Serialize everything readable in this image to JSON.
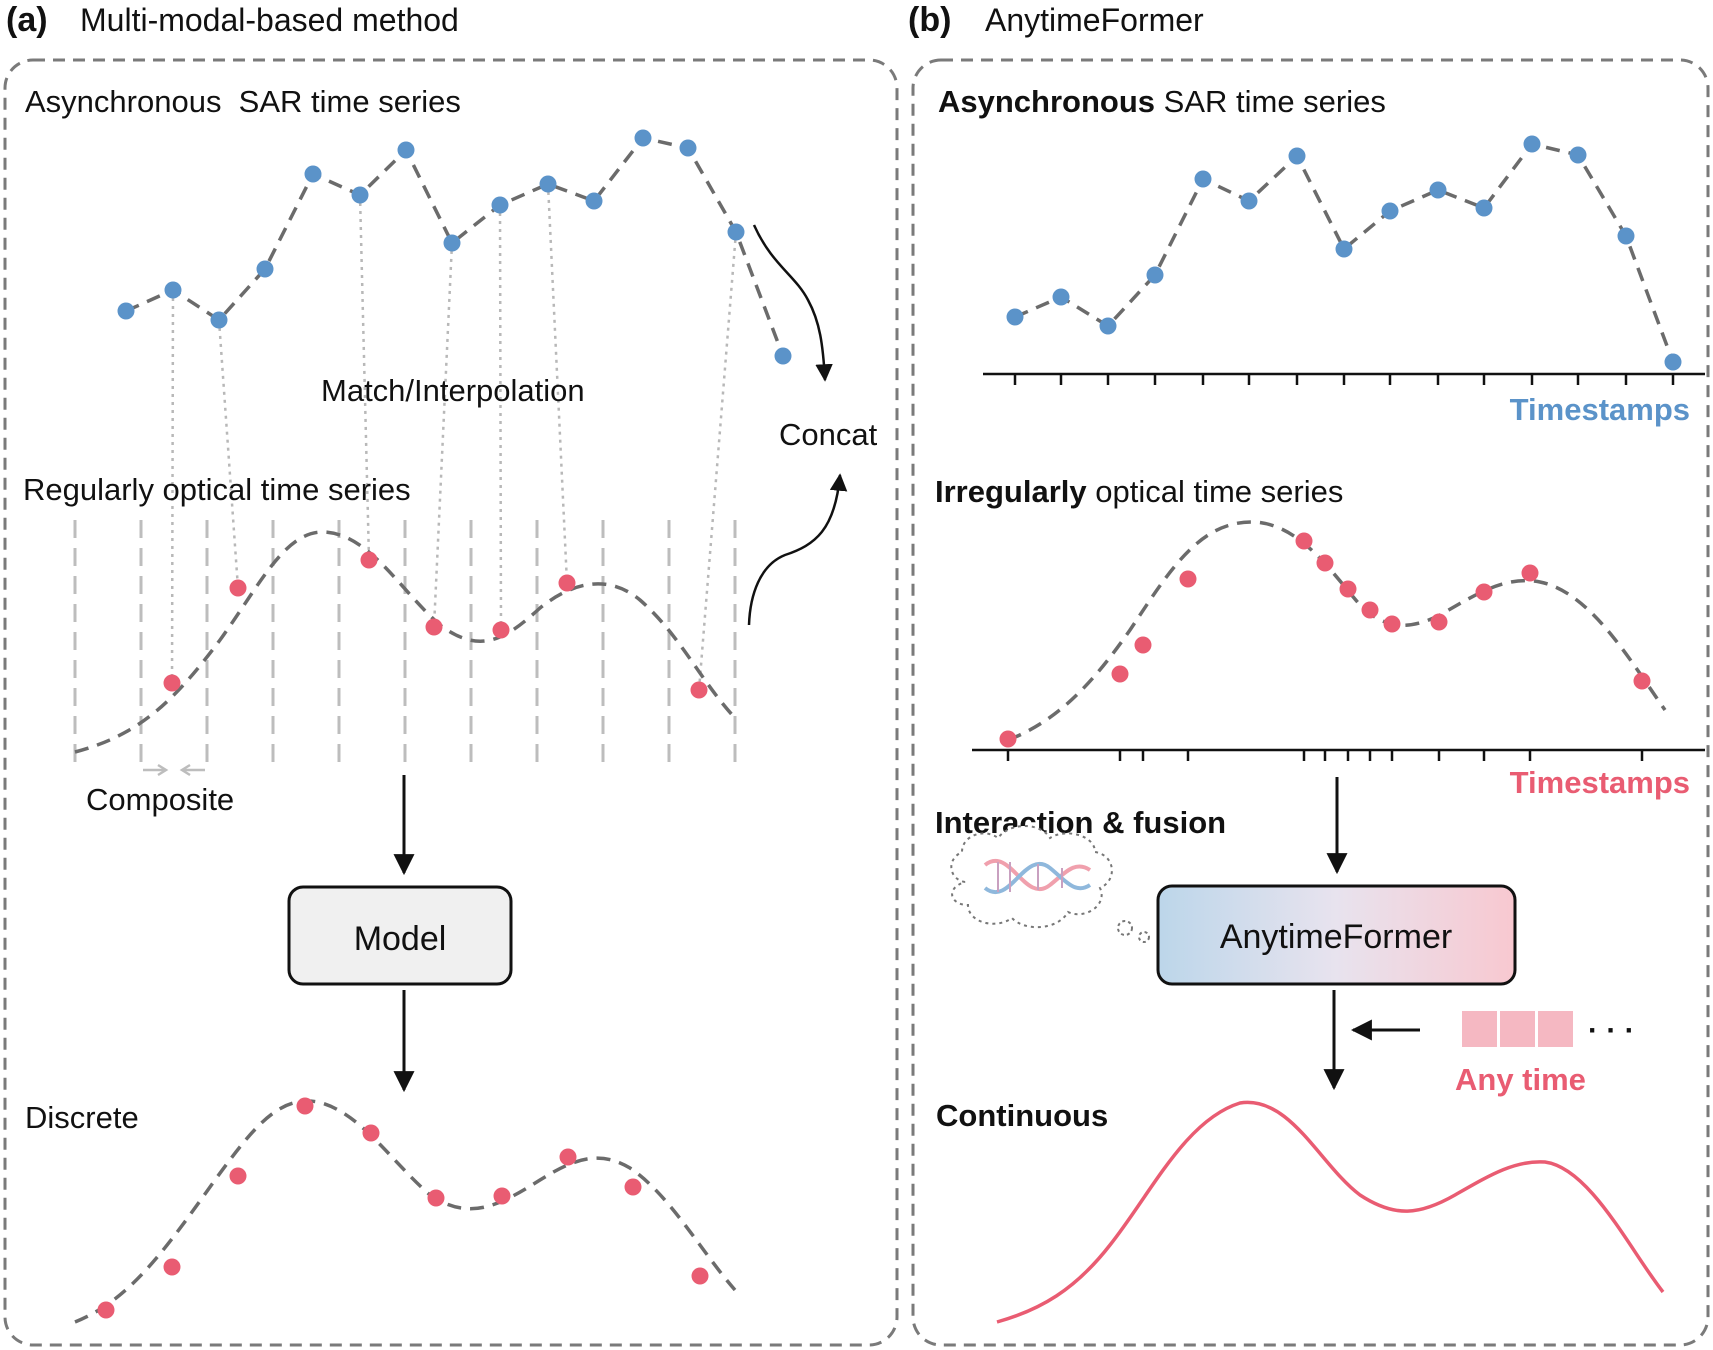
{
  "panel_a": {
    "letter": "(a)",
    "title": "Multi-modal-based method",
    "sar_label": "Asynchronous  SAR time series",
    "match_label": "Match/Interpolation",
    "optical_label": "Regularly optical time series",
    "composite_label": "Composite",
    "concat_label": "Concat",
    "model_label": "Model",
    "output_label": "Discrete"
  },
  "panel_b": {
    "letter": "(b)",
    "title": "AnytimeFormer",
    "sar_label_bold": "Asynchronous",
    "sar_label_rest": " SAR time series",
    "sar_timestamps_label": "Timestamps",
    "optical_label_bold": "Irregularly",
    "optical_label_rest": " optical time series",
    "optical_timestamps_label": "Timestamps",
    "interaction_label": "Interaction & fusion",
    "model_label": "AnytimeFormer",
    "any_time_label": "Any time",
    "ellipsis": "· · ·",
    "output_label": "Continuous"
  },
  "colors": {
    "sar_blue": "#5b93c9",
    "optical_red": "#e95c72",
    "timestamp_blue": "#5b93c9",
    "timestamp_red": "#e95c72",
    "curve_gray": "#6b6b6b",
    "frame_gray": "#7a7a7a"
  },
  "icons": {
    "dna": "dna-helix-icon",
    "thought_cloud": "thought-cloud-icon"
  }
}
